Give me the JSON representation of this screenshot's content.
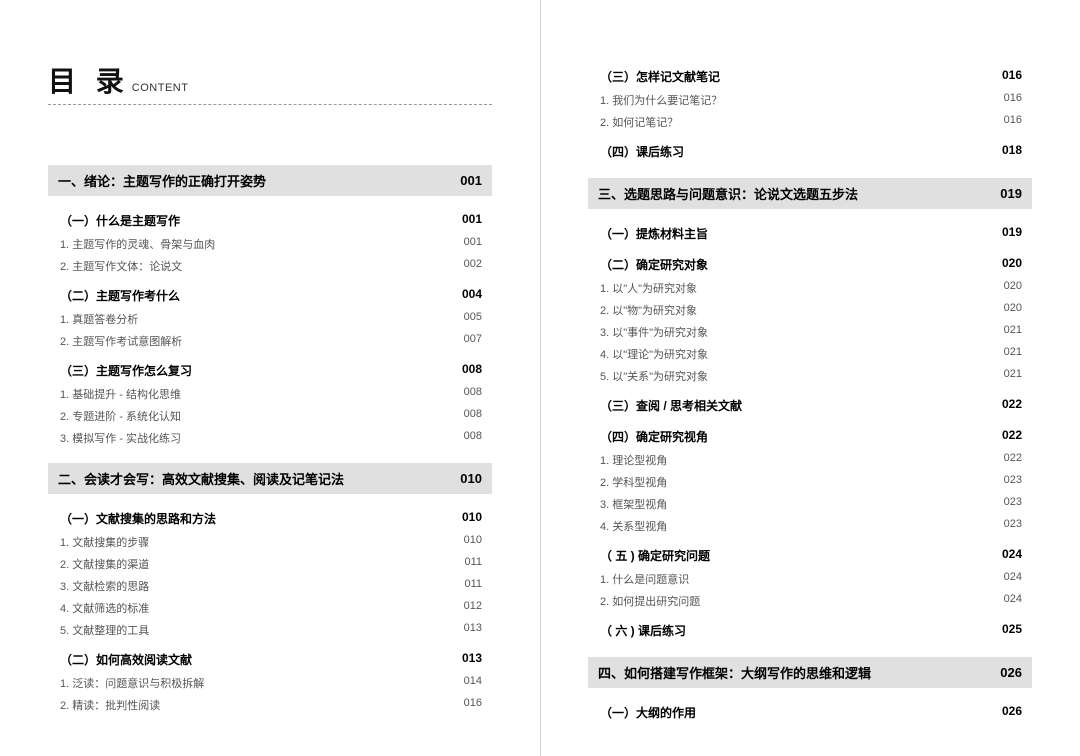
{
  "header": {
    "zh": "目 录",
    "en": "CONTENT"
  },
  "colors": {
    "chapter_bg": "#e0e0e0",
    "text_main": "#000000",
    "text_sub": "#555555",
    "rule": "#999999",
    "divider": "#d0d0d0"
  },
  "left": {
    "chapters": [
      {
        "title": "一、绪论：主题写作的正确打开姿势",
        "page": "001",
        "sections": [
          {
            "title": "（一）什么是主题写作",
            "page": "001",
            "items": [
              {
                "title": "1. 主题写作的灵魂、骨架与血肉",
                "page": "001"
              },
              {
                "title": "2. 主题写作文体：论说文",
                "page": "002"
              }
            ]
          },
          {
            "title": "（二）主题写作考什么",
            "page": "004",
            "items": [
              {
                "title": "1. 真题答卷分析",
                "page": "005"
              },
              {
                "title": "2. 主题写作考试意图解析",
                "page": "007"
              }
            ]
          },
          {
            "title": "（三）主题写作怎么复习",
            "page": "008",
            "items": [
              {
                "title": "1. 基础提升 - 结构化思维",
                "page": "008"
              },
              {
                "title": "2. 专题进阶 - 系统化认知",
                "page": "008"
              },
              {
                "title": "3. 模拟写作 - 实战化练习",
                "page": "008"
              }
            ]
          }
        ]
      },
      {
        "title": "二、会读才会写：高效文献搜集、阅读及记笔记法",
        "page": "010",
        "sections": [
          {
            "title": "（一）文献搜集的思路和方法",
            "page": "010",
            "items": [
              {
                "title": "1. 文献搜集的步骤",
                "page": "010"
              },
              {
                "title": "2. 文献搜集的渠道",
                "page": "011"
              },
              {
                "title": "3. 文献检索的思路",
                "page": "011"
              },
              {
                "title": "4. 文献筛选的标准",
                "page": "012"
              },
              {
                "title": "5. 文献整理的工具",
                "page": "013"
              }
            ]
          },
          {
            "title": "（二）如何高效阅读文献",
            "page": "013",
            "items": [
              {
                "title": "1. 泛读：问题意识与积极拆解",
                "page": "014"
              },
              {
                "title": "2. 精读：批判性阅读",
                "page": "016"
              }
            ]
          }
        ]
      }
    ]
  },
  "right": {
    "pre_sections": [
      {
        "title": "（三）怎样记文献笔记",
        "page": "016",
        "items": [
          {
            "title": "1. 我们为什么要记笔记？",
            "page": "016"
          },
          {
            "title": "2. 如何记笔记？",
            "page": "016"
          }
        ]
      },
      {
        "title": "（四）课后练习",
        "page": "018",
        "items": []
      }
    ],
    "chapters": [
      {
        "title": "三、选题思路与问题意识：论说文选题五步法",
        "page": "019",
        "sections": [
          {
            "title": "（一）提炼材料主旨",
            "page": "019",
            "items": []
          },
          {
            "title": "（二）确定研究对象",
            "page": "020",
            "items": [
              {
                "title": "1. 以\"人\"为研究对象",
                "page": "020"
              },
              {
                "title": "2. 以\"物\"为研究对象",
                "page": "020"
              },
              {
                "title": "3. 以\"事件\"为研究对象",
                "page": "021"
              },
              {
                "title": "4. 以\"理论\"为研究对象",
                "page": "021"
              },
              {
                "title": "5. 以\"关系\"为研究对象",
                "page": "021"
              }
            ]
          },
          {
            "title": "（三）查阅 / 思考相关文献",
            "page": "022",
            "items": []
          },
          {
            "title": "（四）确定研究视角",
            "page": "022",
            "items": [
              {
                "title": "1. 理论型视角",
                "page": "022"
              },
              {
                "title": "2. 学科型视角",
                "page": "023"
              },
              {
                "title": "3. 框架型视角",
                "page": "023"
              },
              {
                "title": "4. 关系型视角",
                "page": "023"
              }
            ]
          },
          {
            "title": "（ 五 ) 确定研究问题",
            "page": "024",
            "items": [
              {
                "title": "1. 什么是问题意识",
                "page": "024"
              },
              {
                "title": "2. 如何提出研究问题",
                "page": "024"
              }
            ]
          },
          {
            "title": "（ 六 ) 课后练习",
            "page": "025",
            "items": []
          }
        ]
      },
      {
        "title": "四、如何搭建写作框架：大纲写作的思维和逻辑",
        "page": "026",
        "sections": [
          {
            "title": "（一）大纲的作用",
            "page": "026",
            "items": []
          }
        ]
      }
    ]
  }
}
